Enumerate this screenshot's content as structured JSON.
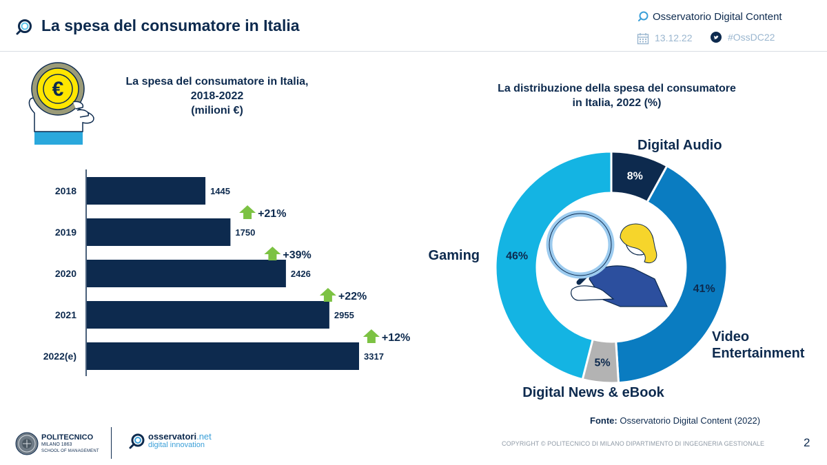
{
  "header": {
    "title": "La spesa del consumatore in Italia",
    "brand": "Osservatorio Digital Content",
    "date": "13.12.22",
    "hashtag": "#OssDC22"
  },
  "left_chart": {
    "title_line1": "La spesa del consumatore in Italia,",
    "title_line2": "2018-2022",
    "title_line3": "(milioni €)"
  },
  "right_chart": {
    "title_line1": "La distribuzione della spesa del consumatore",
    "title_line2": "in Italia, 2022 (%)"
  },
  "chart_data": [
    {
      "type": "bar",
      "orientation": "horizontal",
      "title": "La spesa del consumatore in Italia, 2018-2022 (milioni €)",
      "categories": [
        "2018",
        "2019",
        "2020",
        "2021",
        "2022(e)"
      ],
      "values": [
        1445,
        1750,
        2426,
        2955,
        3317
      ],
      "growth_labels": [
        "+21%",
        "+39%",
        "+22%",
        "+12%"
      ],
      "xlim": [
        0,
        3600
      ],
      "bar_color": "#0d2a4e",
      "arrow_color": "#7cc243"
    },
    {
      "type": "pie",
      "variant": "donut",
      "title": "La distribuzione della spesa del consumatore in Italia, 2022 (%)",
      "slices": [
        {
          "name": "Digital Audio",
          "value": 8,
          "label": "8%",
          "color": "#0d2a4e",
          "label_color": "#ffffff"
        },
        {
          "name": "Video Entertainment",
          "value": 41,
          "label": "41%",
          "color": "#0a7cc1",
          "label_color": "#0d2a4e"
        },
        {
          "name": "Digital News & eBook",
          "value": 5,
          "label": "5%",
          "color": "#b3b3b3",
          "label_color": "#0d2a4e"
        },
        {
          "name": "Gaming",
          "value": 46,
          "label": "46%",
          "color": "#14b4e3",
          "label_color": "#0d2a4e"
        }
      ],
      "category_labels": {
        "digital_audio": "Digital Audio",
        "video_line1": "Video",
        "video_line2": "Entertainment",
        "news": "Digital News & eBook",
        "gaming": "Gaming"
      }
    }
  ],
  "footer": {
    "source_label": "Fonte:",
    "source_text": "Osservatorio Digital Content (2022)",
    "polimi_name": "POLITECNICO",
    "polimi_city": "MILANO 1863",
    "polimi_school": "SCHOOL OF MANAGEMENT",
    "oss_name_bold": "osservatori",
    "oss_name_light": ".net",
    "oss_sub": "digital innovation",
    "copyright": "COPYRIGHT © POLITECNICO DI MILANO DIPARTIMENTO DI INGEGNERIA GESTIONALE",
    "page_number": "2"
  }
}
